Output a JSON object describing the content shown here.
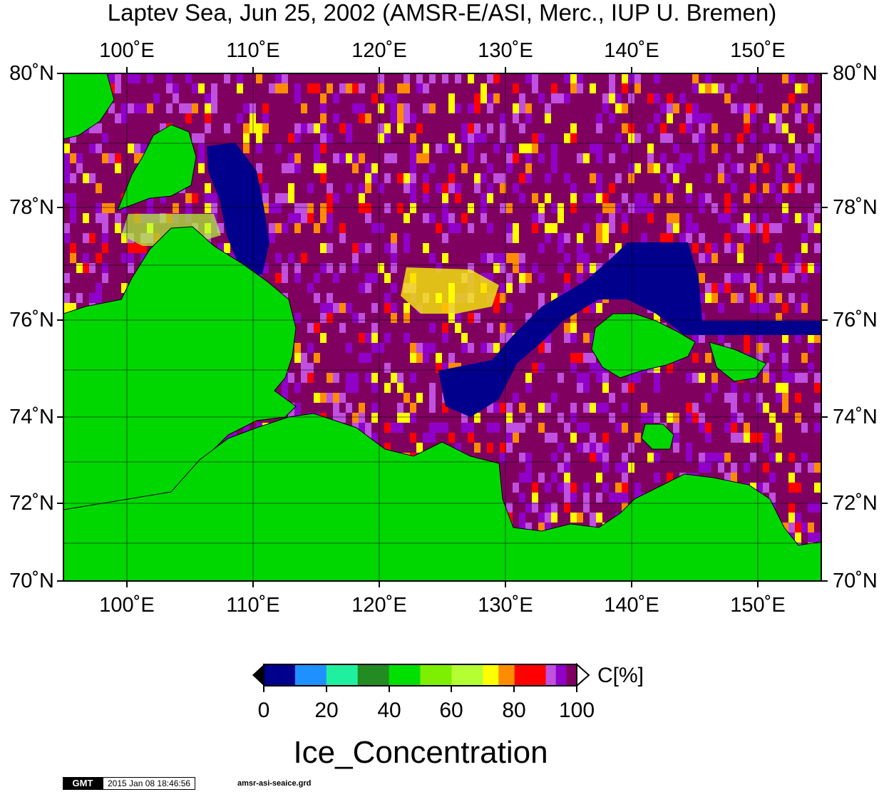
{
  "title": "Laptev Sea, Jun 25, 2002 (AMSR-E/ASI, Merc., IUP U. Bremen)",
  "map": {
    "lon_ticks": [
      "100˚E",
      "110˚E",
      "120˚E",
      "130˚E",
      "140˚E",
      "150˚E"
    ],
    "lat_ticks": [
      "80˚N",
      "78˚N",
      "76˚N",
      "74˚N",
      "72˚N",
      "70˚N"
    ],
    "lon_range": [
      95,
      155
    ],
    "lat_range": [
      70,
      80
    ],
    "projection": "Mercator",
    "land_color": "#00d700",
    "grid": true
  },
  "colorbar": {
    "ticks": [
      "0",
      "20",
      "40",
      "60",
      "80",
      "100"
    ],
    "unit_label": "C[%]",
    "title": "Ice_Concentration",
    "colors": [
      "#00008c",
      "#1e90ff",
      "#1ef0a0",
      "#228b22",
      "#00e000",
      "#7cf000",
      "#b4ff32",
      "#ffff00",
      "#ff8c00",
      "#ff0000",
      "#c050e0",
      "#9000c8",
      "#800060"
    ],
    "range": [
      0,
      100
    ]
  },
  "footer": {
    "logo": "GMT",
    "timestamp": "2015 Jan 08 18:46:56",
    "filename": "amsr-asi-seaice.grd"
  }
}
